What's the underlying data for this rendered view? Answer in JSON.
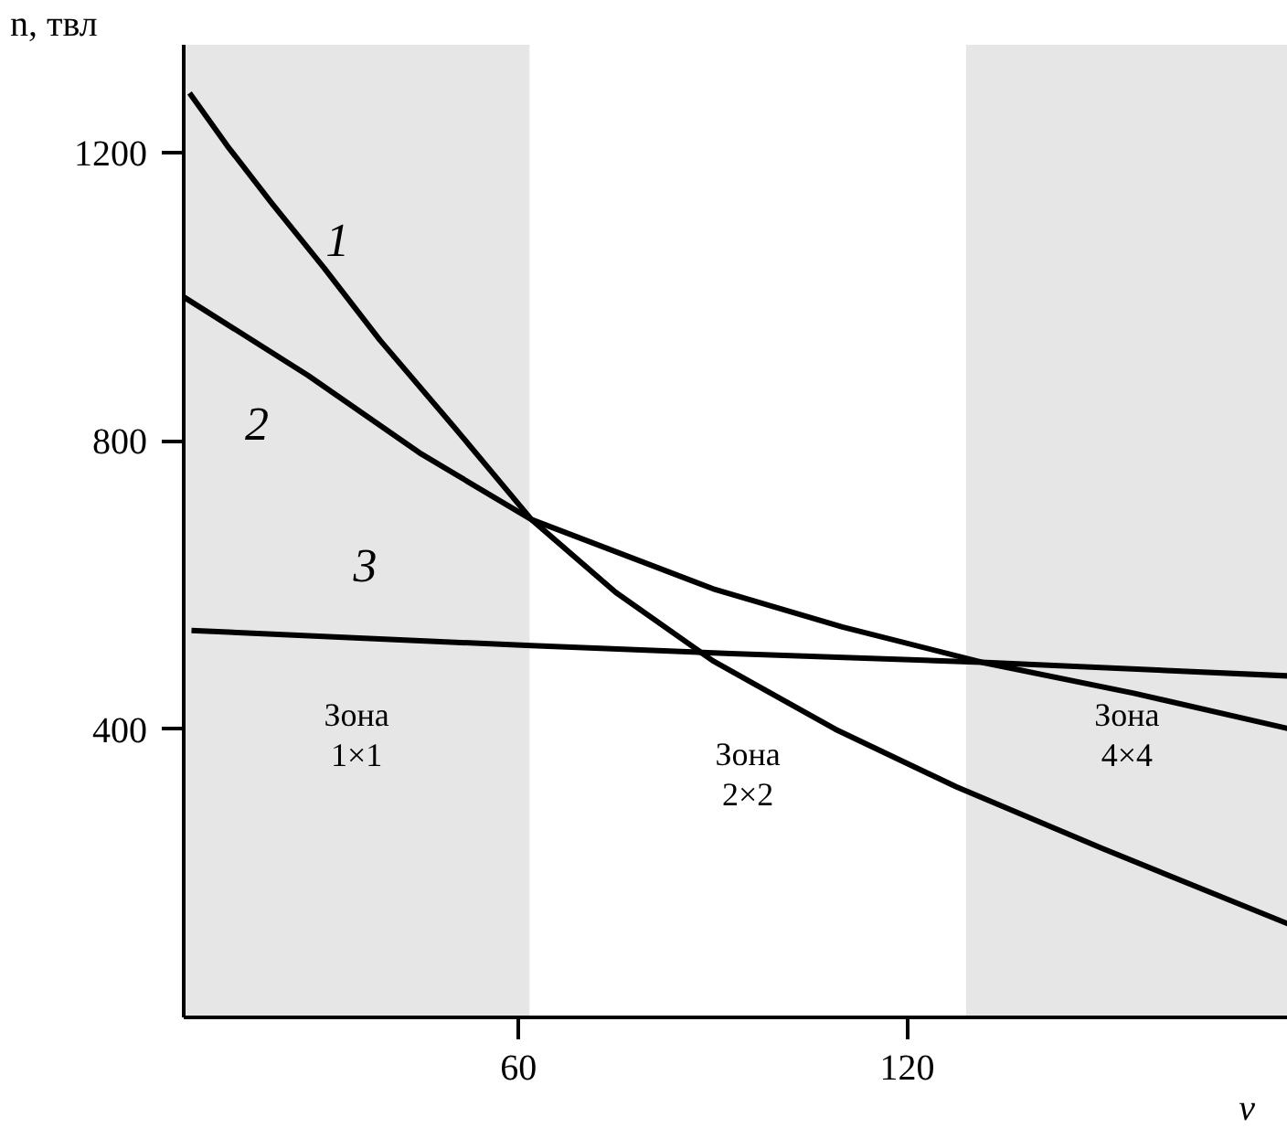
{
  "chart_data": {
    "type": "line",
    "xlabel": "v",
    "ylabel": "n, твл",
    "xlim": [
      8.3,
      178.8
    ],
    "ylim": [
      0,
      1350
    ],
    "xticks": [
      60,
      120
    ],
    "yticks": [
      400,
      800,
      1200
    ],
    "legend": false,
    "marker": "none",
    "line_style": "solid",
    "series": [
      {
        "name": "1",
        "color": "#000000",
        "x": [
          9.2,
          15,
          21.9,
          30,
          38.6,
          50,
          62,
          75,
          90,
          108.9,
          127.6,
          150,
          178.8
        ],
        "values": [
          1283,
          1210,
          1130,
          1040,
          940,
          820,
          691,
          590,
          495,
          400,
          320,
          235,
          130
        ]
      },
      {
        "name": "2",
        "color": "#000000",
        "x": [
          8.3,
          27.5,
          45,
          62,
          90,
          110,
          131.5,
          155,
          178.8
        ],
        "values": [
          1000,
          891,
          782,
          691,
          595,
          542,
          493,
          450,
          401
        ]
      },
      {
        "name": "3",
        "color": "#000000",
        "x": [
          9.5,
          62,
          92.8,
          131.5,
          178.8
        ],
        "values": [
          537,
          516,
          505,
          493,
          474
        ]
      }
    ],
    "bands": [
      {
        "axis": "x",
        "from": 8.3,
        "to": 61.7,
        "color": "#e6e6e6",
        "label": "Зона\n1×1"
      },
      {
        "axis": "x",
        "from": 129.1,
        "to": 178.8,
        "color": "#e6e6e6",
        "label": "Зона\n4×4"
      }
    ],
    "annotations": [
      "Зона\n2×2"
    ]
  }
}
